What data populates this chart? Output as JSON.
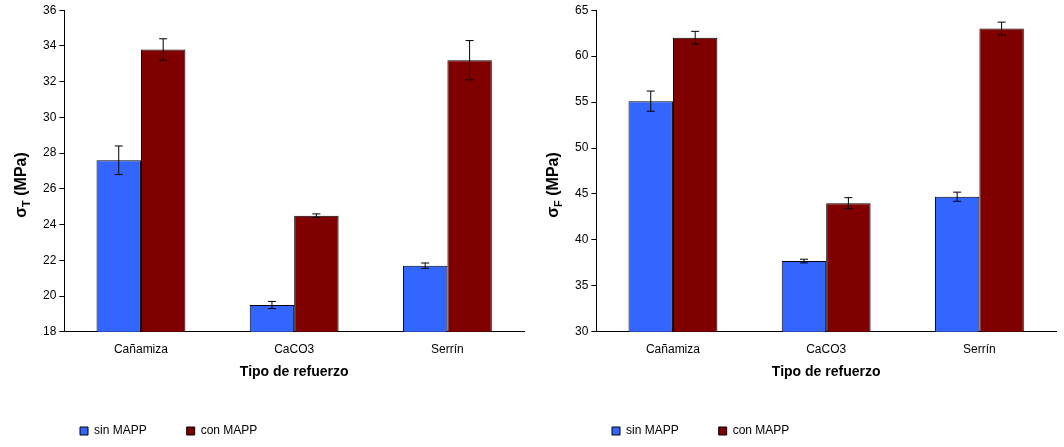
{
  "chart_data": [
    {
      "type": "bar",
      "xlabel": "Tipo de refuerzo",
      "ylabel": "σ$_{T}$ (MPa)",
      "categories": [
        "Cañamiza",
        "CaCO3",
        "Serrín"
      ],
      "series": [
        {
          "name": "sin MAPP",
          "color": "#3366ff",
          "values": [
            27.6,
            19.5,
            21.7
          ],
          "errors": [
            0.8,
            0.2,
            0.15
          ]
        },
        {
          "name": "con MAPP",
          "color": "#800000",
          "values": [
            33.8,
            24.5,
            33.2
          ],
          "errors": [
            0.6,
            0.1,
            1.1
          ]
        }
      ],
      "ylim": [
        18,
        36
      ],
      "yticks": [
        18,
        20,
        22,
        24,
        26,
        28,
        30,
        32,
        34,
        36
      ],
      "grid": false,
      "legend": "bottom left"
    },
    {
      "type": "bar",
      "xlabel": "Tipo de refuerzo",
      "ylabel": "σ$_{F}$ (MPa)",
      "categories": [
        "Cañamiza",
        "CaCO3",
        "Serrín"
      ],
      "series": [
        {
          "name": "sin MAPP",
          "color": "#3366ff",
          "values": [
            55.1,
            37.7,
            44.7
          ],
          "errors": [
            1.1,
            0.2,
            0.5
          ]
        },
        {
          "name": "con MAPP",
          "color": "#800000",
          "values": [
            62.0,
            44.0,
            63.0
          ],
          "errors": [
            0.7,
            0.6,
            0.7
          ]
        }
      ],
      "ylim": [
        30,
        65
      ],
      "yticks": [
        30,
        35,
        40,
        45,
        50,
        55,
        60,
        65
      ],
      "grid": false,
      "legend": "bottom left"
    }
  ]
}
